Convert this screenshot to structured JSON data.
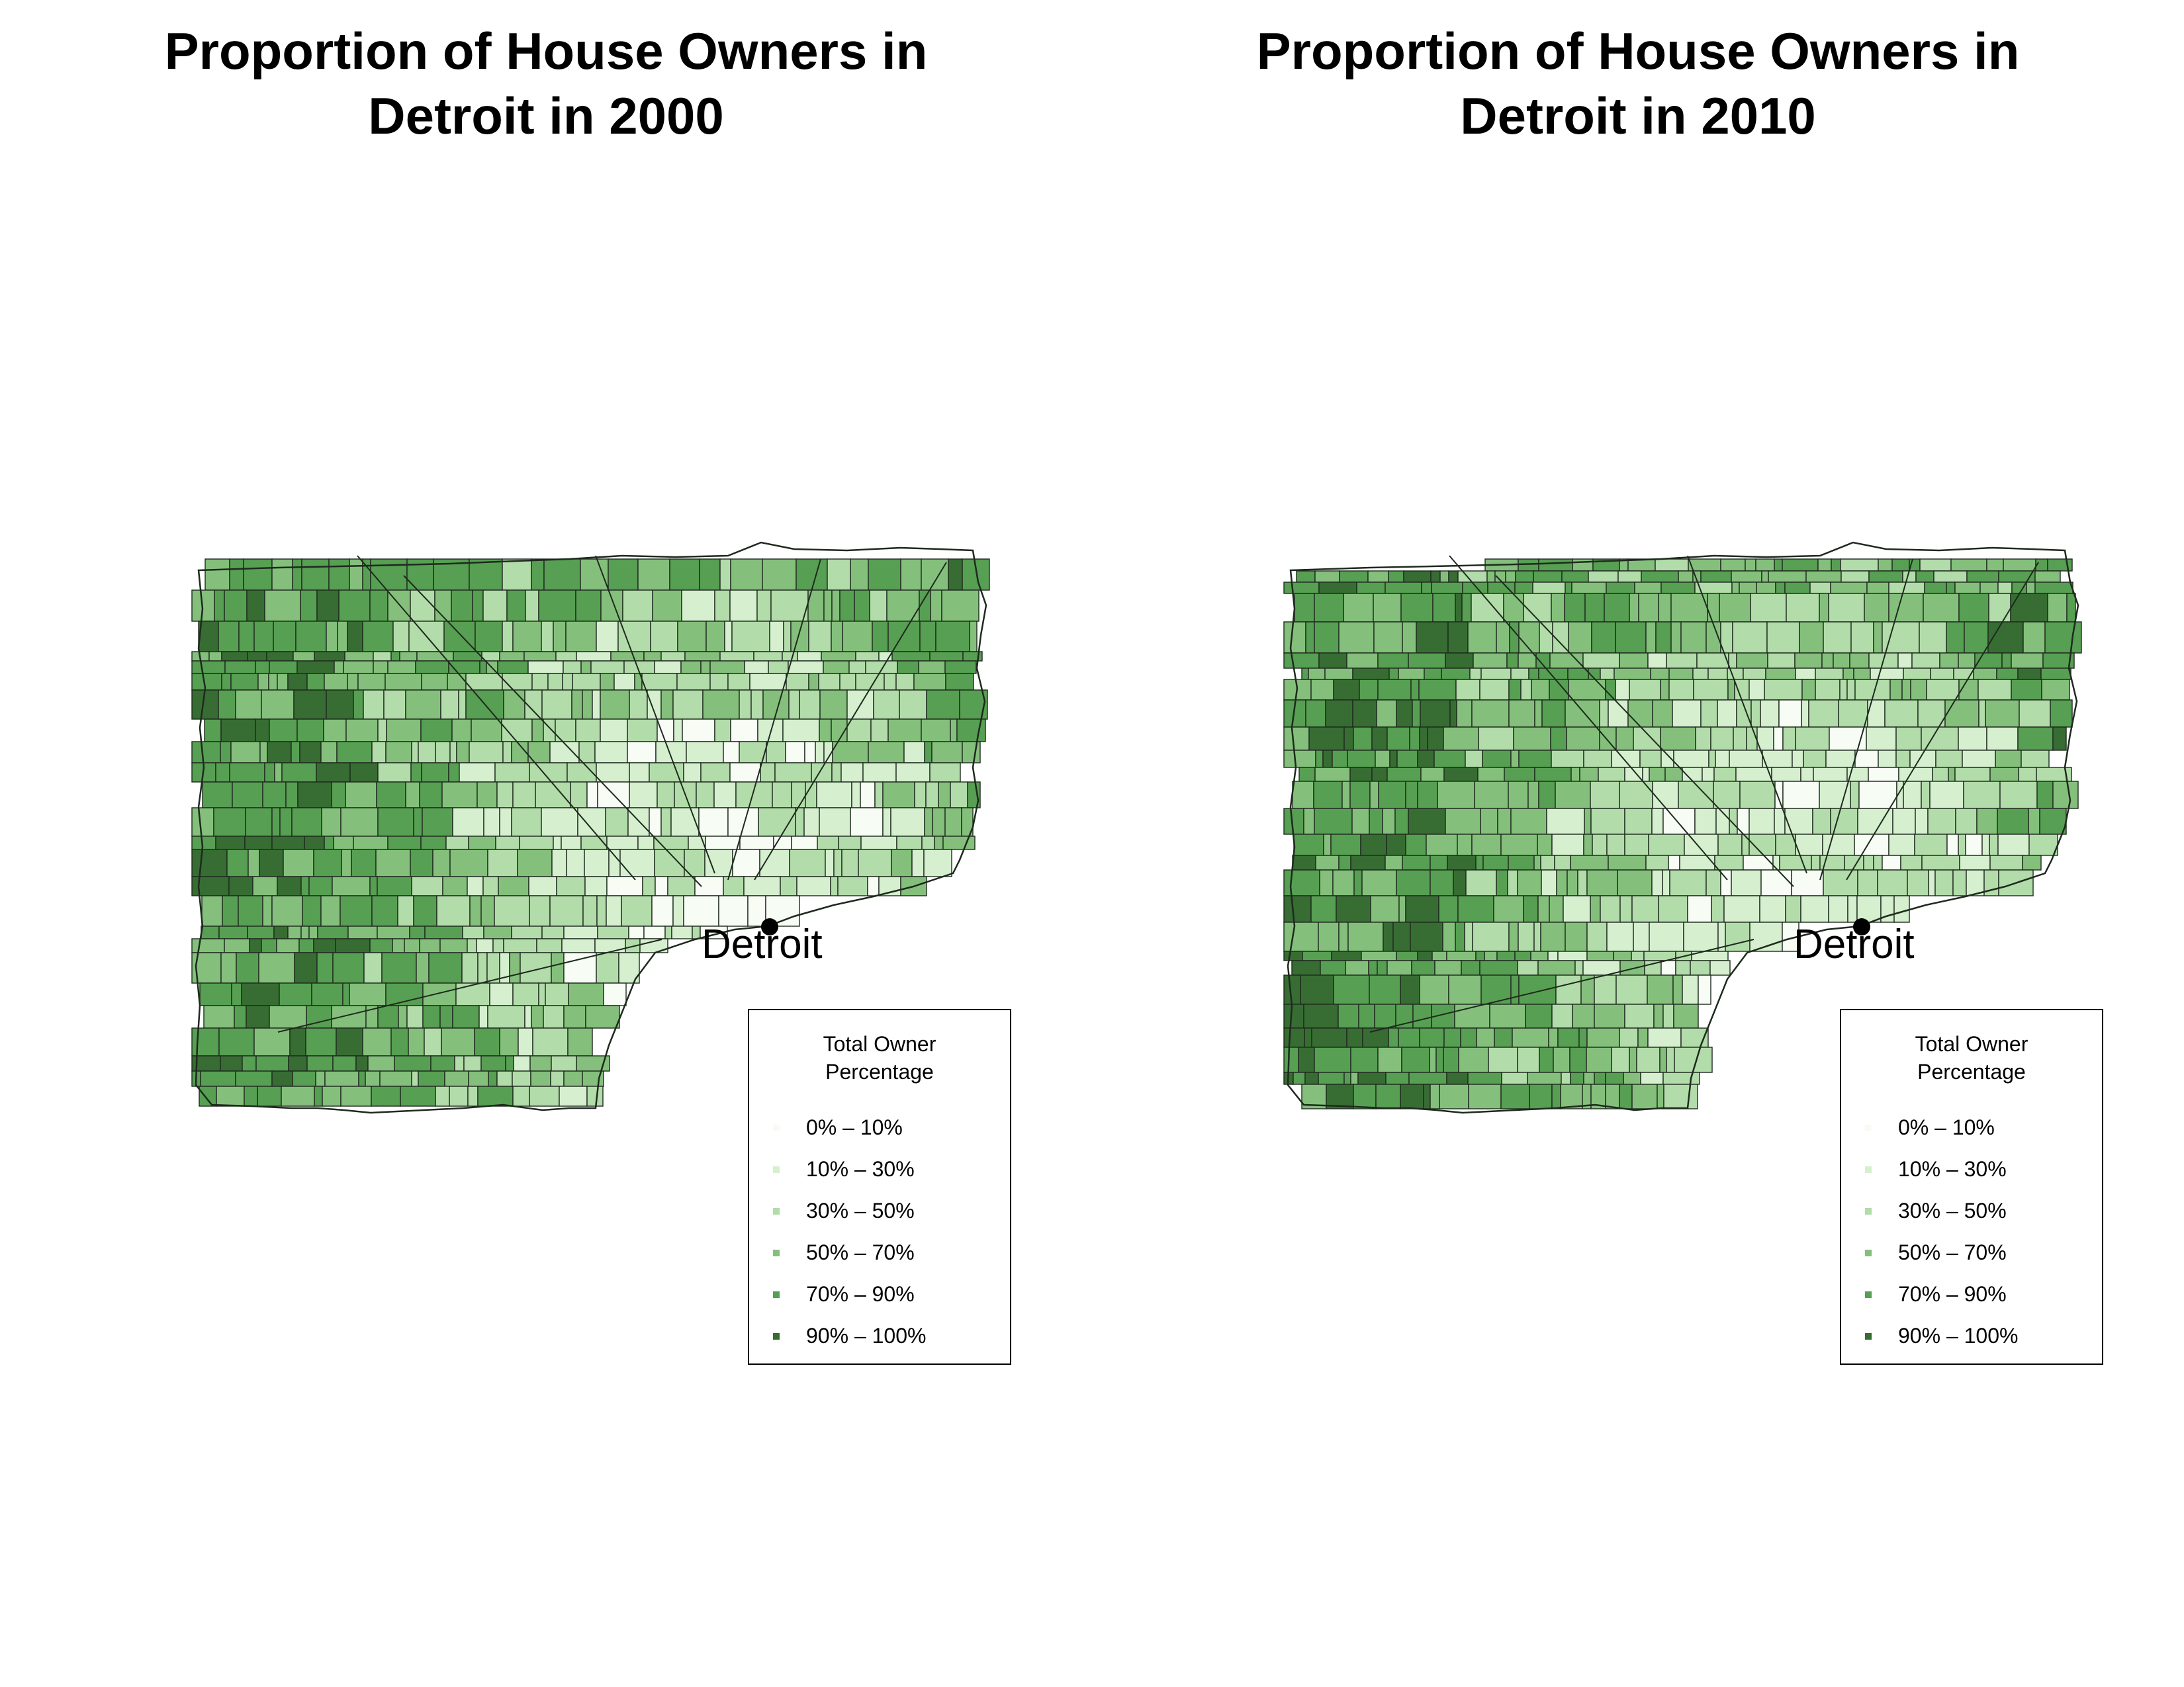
{
  "maps": [
    {
      "title_line1": "Proportion of House Owners in",
      "title_line2": "Detroit in 2000",
      "city_label": "Detroit",
      "legend": {
        "title_line1": "Total Owner",
        "title_line2": "Percentage",
        "items": [
          "0% – 10%",
          "10% – 30%",
          "30% – 50%",
          "50% – 70%",
          "70% – 90%",
          "90% – 100%"
        ]
      }
    },
    {
      "title_line1": "Proportion of House Owners in",
      "title_line2": "Detroit in 2010",
      "city_label": "Detroit",
      "legend": {
        "title_line1": "Total Owner",
        "title_line2": "Percentage",
        "items": [
          "0% – 10%",
          "10% – 30%",
          "30% – 50%",
          "50% – 70%",
          "70% – 90%",
          "90% – 100%"
        ]
      }
    }
  ],
  "legend_colors": [
    "#f7fcf5",
    "#d5efcf",
    "#b2dca9",
    "#84c07b",
    "#579f52",
    "#376d33"
  ]
}
